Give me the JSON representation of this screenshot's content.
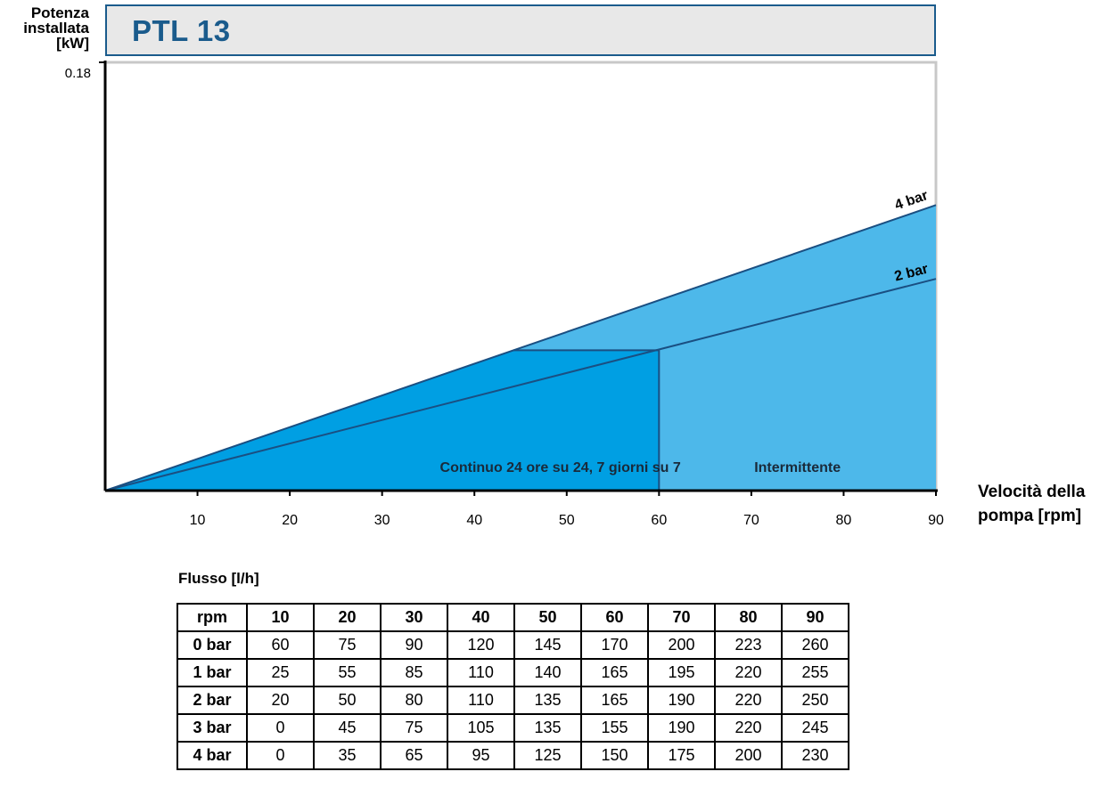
{
  "chart_data": {
    "type": "area",
    "title": "PTL 13",
    "ylabel_lines": [
      "Potenza",
      "installata",
      "[kW]"
    ],
    "xlabel_lines": [
      "Velocità della",
      "pompa [rpm]"
    ],
    "ylim": [
      0,
      0.18
    ],
    "y_ticks": [
      "0.18"
    ],
    "xlim": [
      0,
      90
    ],
    "x_ticks": [
      "10",
      "20",
      "30",
      "40",
      "50",
      "60",
      "70",
      "80",
      "90"
    ],
    "series": [
      {
        "name": "4 bar",
        "x": [
          0,
          90
        ],
        "y": [
          0,
          0.12
        ]
      },
      {
        "name": "2 bar",
        "x": [
          0,
          90
        ],
        "y": [
          0,
          0.089
        ]
      }
    ],
    "regions": [
      {
        "label": "Continuo 24 ore su 24, 7 giorni su 7",
        "x_range": [
          0,
          60
        ],
        "y_max": 0.059
      },
      {
        "label": "Intermittente",
        "x_range": [
          60,
          90
        ]
      }
    ],
    "colors": {
      "continuous": "#009fe3",
      "intermittent": "#4db8ea",
      "line": "#1a4f82",
      "title": "#1a5b8c"
    }
  },
  "table": {
    "title": "Flusso [l/h]",
    "header": [
      "rpm",
      "10",
      "20",
      "30",
      "40",
      "50",
      "60",
      "70",
      "80",
      "90"
    ],
    "rows": [
      {
        "label": "0 bar",
        "values": [
          "60",
          "75",
          "90",
          "120",
          "145",
          "170",
          "200",
          "223",
          "260"
        ]
      },
      {
        "label": "1 bar",
        "values": [
          "25",
          "55",
          "85",
          "110",
          "140",
          "165",
          "195",
          "220",
          "255"
        ]
      },
      {
        "label": "2 bar",
        "values": [
          "20",
          "50",
          "80",
          "110",
          "135",
          "165",
          "190",
          "220",
          "250"
        ]
      },
      {
        "label": "3 bar",
        "values": [
          "0",
          "45",
          "75",
          "105",
          "135",
          "155",
          "190",
          "220",
          "245"
        ]
      },
      {
        "label": "4 bar",
        "values": [
          "0",
          "35",
          "65",
          "95",
          "125",
          "150",
          "175",
          "200",
          "230"
        ]
      }
    ]
  }
}
